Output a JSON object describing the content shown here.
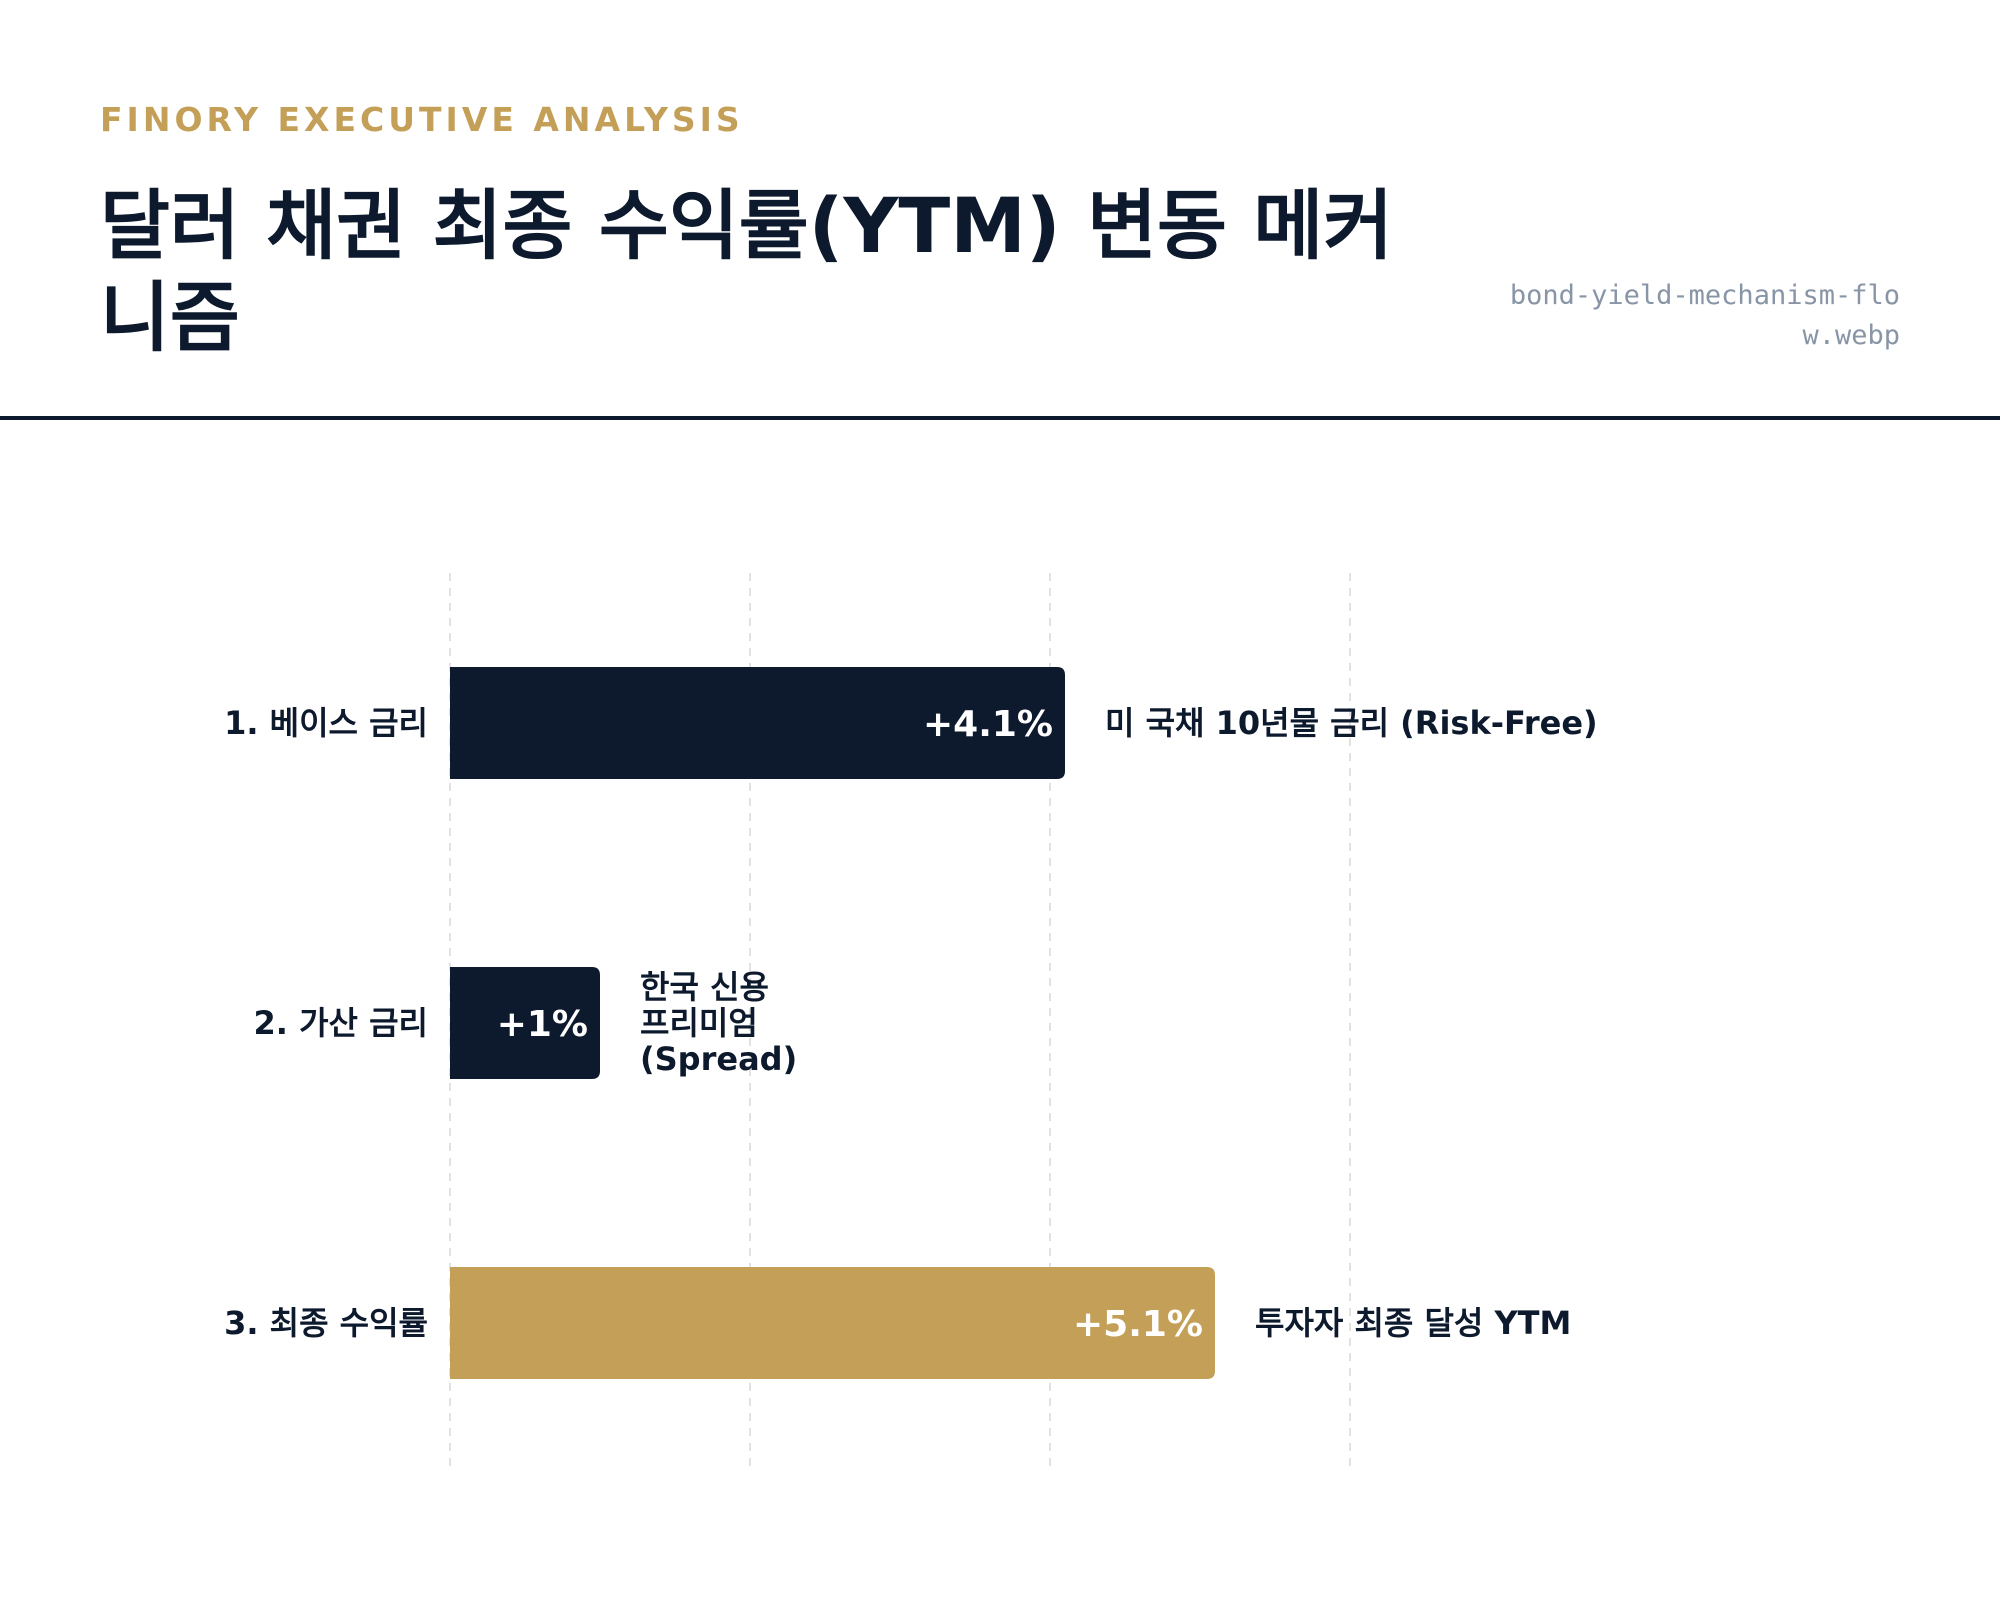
{
  "header": {
    "brand": "FINORY EXECUTIVE ANALYSIS",
    "title": "달러 채권 최종 수익률(YTM) 변동 메커니즘",
    "filename": "bond-yield-mechanism-flow.webp"
  },
  "colors": {
    "navy": "#0D1A2D",
    "gold": "#C49F57",
    "grid": "#E2E2E2"
  },
  "chart_data": {
    "type": "bar",
    "orientation": "horizontal",
    "categories": [
      "1. 베이스 금리",
      "2. 가산 금리",
      "3. 최종 수익률"
    ],
    "values": [
      4.1,
      1,
      5.1
    ],
    "value_labels": [
      "+4.1%",
      "+1%",
      "+5.1%"
    ],
    "descriptions": [
      [
        "미 국채 10년물 금리 (Risk-Free)"
      ],
      [
        "한국 신용",
        "프리미엄",
        "(Spread)"
      ],
      [
        "투자자 최종 달성 YTM"
      ]
    ],
    "bar_colors": [
      "#0D1A2D",
      "#0D1A2D",
      "#C49F57"
    ],
    "xlim": [
      0,
      6
    ],
    "grid": true,
    "gridlines_at": [
      0,
      2,
      4,
      6
    ]
  }
}
